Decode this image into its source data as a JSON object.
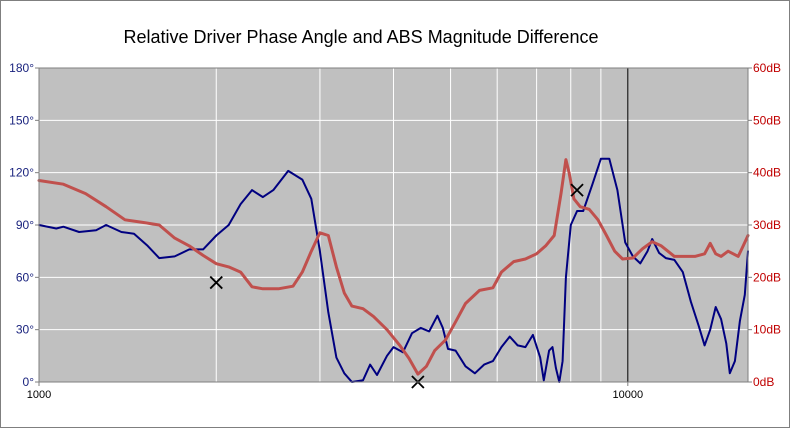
{
  "chart_data": {
    "type": "line",
    "title": "Relative Driver Phase Angle and ABS Magnitude  Difference",
    "x_scale": "log",
    "xlim": [
      1000,
      16000
    ],
    "x_tick_labels": [
      {
        "value": 1000,
        "label": "1000"
      },
      {
        "value": 10000,
        "label": "10000"
      }
    ],
    "y_left": {
      "range": [
        0,
        180
      ],
      "ticks": [
        {
          "value": 0,
          "label": "0°"
        },
        {
          "value": 30,
          "label": "30°"
        },
        {
          "value": 60,
          "label": "60°"
        },
        {
          "value": 90,
          "label": "90°"
        },
        {
          "value": 120,
          "label": "120°"
        },
        {
          "value": 150,
          "label": "150°"
        },
        {
          "value": 180,
          "label": "180°"
        }
      ]
    },
    "y_right": {
      "range": [
        0,
        60
      ],
      "ticks": [
        {
          "value": 0,
          "label": "0dB"
        },
        {
          "value": 10,
          "label": "10dB"
        },
        {
          "value": 20,
          "label": "20dB"
        },
        {
          "value": 30,
          "label": "30dB"
        },
        {
          "value": 40,
          "label": "40dB"
        },
        {
          "value": 50,
          "label": "50dB"
        },
        {
          "value": 60,
          "label": "60dB"
        }
      ]
    },
    "grid": true,
    "colors": {
      "plot_bg": "#c0c0c0",
      "grid": "#ffffff",
      "decade_line": "#000000",
      "phase": "#000080",
      "magnitude": "#c0504d",
      "left_axis_text": "#1a237e",
      "right_axis_text": "#c00000"
    },
    "series": [
      {
        "key": "phase",
        "axis": "left",
        "points": [
          [
            1000,
            90
          ],
          [
            1070,
            88
          ],
          [
            1100,
            89
          ],
          [
            1170,
            86
          ],
          [
            1250,
            87
          ],
          [
            1300,
            90
          ],
          [
            1380,
            86
          ],
          [
            1450,
            85
          ],
          [
            1530,
            78
          ],
          [
            1600,
            71
          ],
          [
            1700,
            72
          ],
          [
            1800,
            76
          ],
          [
            1900,
            76
          ],
          [
            2000,
            84
          ],
          [
            2100,
            90
          ],
          [
            2200,
            102
          ],
          [
            2300,
            110
          ],
          [
            2400,
            106
          ],
          [
            2500,
            110
          ],
          [
            2650,
            121
          ],
          [
            2800,
            116
          ],
          [
            2900,
            105
          ],
          [
            3000,
            75
          ],
          [
            3100,
            40
          ],
          [
            3200,
            14
          ],
          [
            3300,
            5
          ],
          [
            3400,
            0
          ],
          [
            3550,
            1
          ],
          [
            3650,
            10
          ],
          [
            3750,
            4
          ],
          [
            3900,
            15
          ],
          [
            4000,
            20
          ],
          [
            4150,
            17
          ],
          [
            4300,
            28
          ],
          [
            4450,
            31
          ],
          [
            4600,
            29
          ],
          [
            4750,
            38
          ],
          [
            4850,
            31
          ],
          [
            4950,
            19
          ],
          [
            5100,
            18
          ],
          [
            5300,
            9
          ],
          [
            5500,
            5
          ],
          [
            5700,
            10
          ],
          [
            5900,
            12
          ],
          [
            6100,
            20
          ],
          [
            6300,
            26
          ],
          [
            6500,
            21
          ],
          [
            6700,
            20
          ],
          [
            6900,
            27
          ],
          [
            7100,
            14
          ],
          [
            7200,
            1
          ],
          [
            7350,
            18
          ],
          [
            7450,
            20
          ],
          [
            7550,
            8
          ],
          [
            7650,
            0
          ],
          [
            7750,
            12
          ],
          [
            7850,
            60
          ],
          [
            8000,
            90
          ],
          [
            8200,
            98
          ],
          [
            8400,
            98
          ],
          [
            8700,
            113
          ],
          [
            9000,
            128
          ],
          [
            9300,
            128
          ],
          [
            9600,
            110
          ],
          [
            9900,
            80
          ],
          [
            10200,
            72
          ],
          [
            10500,
            68
          ],
          [
            10800,
            75
          ],
          [
            11000,
            82
          ],
          [
            11300,
            74
          ],
          [
            11600,
            71
          ],
          [
            12000,
            70
          ],
          [
            12400,
            63
          ],
          [
            12800,
            46
          ],
          [
            13200,
            32
          ],
          [
            13500,
            21
          ],
          [
            13800,
            30
          ],
          [
            14100,
            43
          ],
          [
            14400,
            36
          ],
          [
            14700,
            22
          ],
          [
            14900,
            5
          ],
          [
            15200,
            12
          ],
          [
            15500,
            35
          ],
          [
            15800,
            50
          ],
          [
            16000,
            75
          ]
        ]
      },
      {
        "key": "magnitude",
        "axis": "right",
        "points": [
          [
            1000,
            38.5
          ],
          [
            1100,
            37.8
          ],
          [
            1200,
            36.0
          ],
          [
            1300,
            33.5
          ],
          [
            1400,
            31.0
          ],
          [
            1500,
            30.5
          ],
          [
            1600,
            30.0
          ],
          [
            1700,
            27.5
          ],
          [
            1800,
            26.0
          ],
          [
            1900,
            24.2
          ],
          [
            2000,
            22.6
          ],
          [
            2100,
            22.0
          ],
          [
            2200,
            21.0
          ],
          [
            2300,
            18.2
          ],
          [
            2400,
            17.8
          ],
          [
            2550,
            17.8
          ],
          [
            2700,
            18.3
          ],
          [
            2800,
            21.0
          ],
          [
            2900,
            25.0
          ],
          [
            3000,
            28.5
          ],
          [
            3100,
            28.0
          ],
          [
            3200,
            22.0
          ],
          [
            3300,
            17.0
          ],
          [
            3400,
            14.5
          ],
          [
            3550,
            14.0
          ],
          [
            3700,
            12.5
          ],
          [
            3900,
            10.0
          ],
          [
            4100,
            7.0
          ],
          [
            4250,
            4.5
          ],
          [
            4400,
            1.5
          ],
          [
            4550,
            3.0
          ],
          [
            4700,
            6.0
          ],
          [
            4900,
            8.0
          ],
          [
            5100,
            11.5
          ],
          [
            5300,
            15.0
          ],
          [
            5600,
            17.5
          ],
          [
            5900,
            18.0
          ],
          [
            6100,
            21.0
          ],
          [
            6400,
            23.0
          ],
          [
            6700,
            23.5
          ],
          [
            7000,
            24.5
          ],
          [
            7250,
            26.0
          ],
          [
            7500,
            28.0
          ],
          [
            7700,
            36.0
          ],
          [
            7850,
            42.5
          ],
          [
            7950,
            40.0
          ],
          [
            8100,
            35.0
          ],
          [
            8300,
            33.5
          ],
          [
            8600,
            33.0
          ],
          [
            8900,
            31.0
          ],
          [
            9200,
            28.0
          ],
          [
            9500,
            25.0
          ],
          [
            9800,
            23.5
          ],
          [
            10200,
            23.7
          ],
          [
            10600,
            25.5
          ],
          [
            11000,
            26.8
          ],
          [
            11400,
            26.0
          ],
          [
            12000,
            24.0
          ],
          [
            12500,
            24.0
          ],
          [
            13000,
            24.0
          ],
          [
            13500,
            24.5
          ],
          [
            13800,
            26.5
          ],
          [
            14100,
            24.5
          ],
          [
            14400,
            24.0
          ],
          [
            14800,
            25.0
          ],
          [
            15100,
            24.5
          ],
          [
            15400,
            24.0
          ],
          [
            15700,
            26.0
          ],
          [
            16000,
            28.0
          ]
        ]
      }
    ],
    "markers": [
      {
        "x": 2000,
        "y": 57,
        "axis": "left",
        "shape": "x"
      },
      {
        "x": 4400,
        "y": 0,
        "axis": "left",
        "shape": "x"
      },
      {
        "x": 8200,
        "y": 110,
        "axis": "left",
        "shape": "x"
      }
    ]
  }
}
